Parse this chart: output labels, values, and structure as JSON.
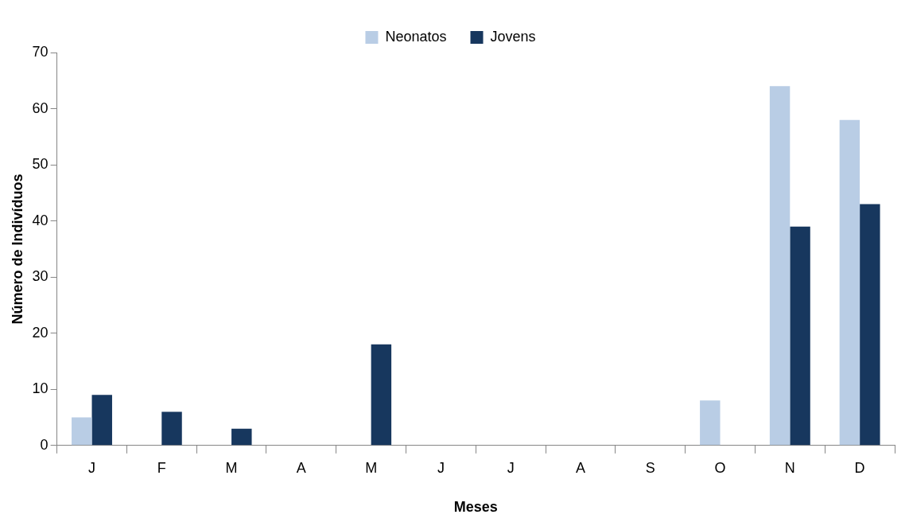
{
  "chart_data": {
    "type": "bar",
    "xlabel": "Meses",
    "ylabel": "Número de Indivíduos",
    "categories": [
      "J",
      "F",
      "M",
      "A",
      "M",
      "J",
      "J",
      "A",
      "S",
      "O",
      "N",
      "D"
    ],
    "series": [
      {
        "name": "Neonatos",
        "color": "#b9cde5",
        "values": [
          5,
          0,
          0,
          0,
          0,
          0,
          0,
          0,
          0,
          8,
          64,
          58
        ]
      },
      {
        "name": "Jovens",
        "color": "#17375e",
        "values": [
          9,
          6,
          3,
          0,
          18,
          0,
          0,
          0,
          0,
          0,
          39,
          43
        ]
      }
    ],
    "ylim": [
      0,
      70
    ],
    "yticks": [
      0,
      10,
      20,
      30,
      40,
      50,
      60,
      70
    ],
    "grid": false,
    "legend": "top"
  }
}
